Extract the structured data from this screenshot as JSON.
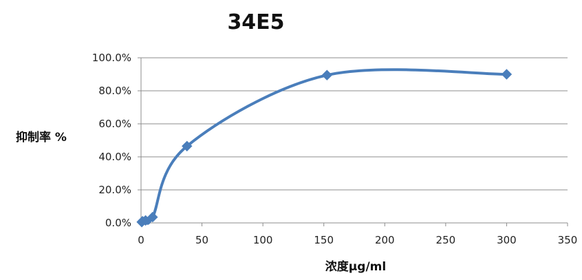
{
  "chart_data": {
    "type": "scatter",
    "title": "34E5",
    "xlabel": "浓度μg/ml",
    "ylabel": "抑制率 %",
    "xlim": [
      0,
      350
    ],
    "ylim": [
      0,
      100
    ],
    "x_ticks": [
      0,
      50,
      100,
      150,
      200,
      250,
      300,
      350
    ],
    "y_ticks": [
      0,
      20,
      40,
      60,
      80,
      100
    ],
    "x_tick_labels": [
      "0",
      "50",
      "100",
      "150",
      "200",
      "250",
      "300",
      "350"
    ],
    "y_tick_labels": [
      "0.0%",
      "20.0%",
      "40.0%",
      "60.0%",
      "80.0%",
      "100.0%"
    ],
    "grid": "horizontal",
    "legend": "none",
    "line": "smooth",
    "marker": "diamond",
    "series": [
      {
        "x": [
          0.6,
          1.2,
          3.7,
          9.5,
          37.7,
          152.6,
          300
        ],
        "y": [
          0.5,
          1.0,
          1.5,
          3.5,
          46.5,
          89.5,
          90.0
        ],
        "color": "#4a7ebb"
      }
    ]
  }
}
